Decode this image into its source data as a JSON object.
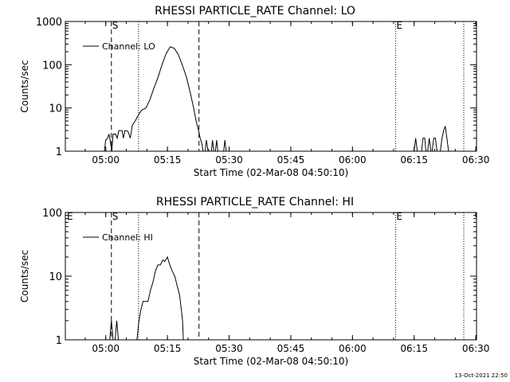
{
  "footer": {
    "timestamp": "13-Oct-2021 22:50"
  },
  "chart_data": [
    {
      "type": "line",
      "title": "RHESSI PARTICLE_RATE Channel: LO",
      "xlabel": "Start Time (02-Mar-08 04:50:10)",
      "ylabel": "Counts/sec",
      "x_unit": "minutes after 04:50:10",
      "xlim": [
        0,
        100
      ],
      "ylim": [
        1,
        1000
      ],
      "yscale": "log",
      "xticks": [
        {
          "value": 9.83,
          "label": "05:00"
        },
        {
          "value": 24.83,
          "label": "05:15"
        },
        {
          "value": 39.83,
          "label": "05:30"
        },
        {
          "value": 54.83,
          "label": "05:45"
        },
        {
          "value": 69.83,
          "label": "06:00"
        },
        {
          "value": 84.83,
          "label": "06:15"
        },
        {
          "value": 99.83,
          "label": "06:30"
        }
      ],
      "yticks": [
        {
          "value": 1,
          "label": "1"
        },
        {
          "value": 10,
          "label": "10"
        },
        {
          "value": 100,
          "label": "100"
        },
        {
          "value": 1000,
          "label": "1000"
        }
      ],
      "legend": {
        "label": "Channel: LO",
        "position": "top-left"
      },
      "markers": [
        {
          "label": "S",
          "x": 11.2,
          "style": "dashed"
        },
        {
          "label": "",
          "x": 17.8,
          "style": "dotted"
        },
        {
          "label": "",
          "x": 32.5,
          "style": "dashed"
        },
        {
          "label": "E",
          "x": 80.3,
          "style": "dotted"
        },
        {
          "label": "",
          "x": 96.9,
          "style": "dotted"
        }
      ],
      "series": [
        {
          "segments": [
            [
              [
                9.5,
                1
              ],
              [
                9.8,
                1.8
              ],
              [
                10.3,
                2
              ],
              [
                10.6,
                2.5
              ],
              [
                10.9,
                1.8
              ],
              [
                11.3,
                1
              ],
              [
                11.6,
                2.5
              ],
              [
                12.2,
                2.5
              ],
              [
                12.6,
                2
              ],
              [
                13.0,
                3
              ],
              [
                13.8,
                3
              ],
              [
                14.1,
                2
              ],
              [
                14.5,
                3
              ],
              [
                14.9,
                3
              ],
              [
                15.3,
                2.8
              ],
              [
                15.8,
                2
              ],
              [
                16.3,
                4
              ],
              [
                17.0,
                5
              ],
              [
                17.8,
                7
              ],
              [
                18.6,
                9
              ],
              [
                19.6,
                10
              ],
              [
                20.5,
                15
              ],
              [
                21.5,
                28
              ],
              [
                22.5,
                50
              ],
              [
                23.5,
                100
              ],
              [
                24.5,
                180
              ],
              [
                25.5,
                260
              ],
              [
                26.5,
                240
              ],
              [
                27.5,
                170
              ],
              [
                28.5,
                95
              ],
              [
                29.5,
                50
              ],
              [
                30.5,
                20
              ],
              [
                31.2,
                10
              ],
              [
                31.8,
                5
              ],
              [
                32.4,
                3
              ],
              [
                32.8,
                2
              ],
              [
                33.2,
                1.5
              ],
              [
                33.5,
                1
              ]
            ],
            [
              [
                34.0,
                1
              ],
              [
                34.3,
                1.8
              ],
              [
                34.7,
                1
              ]
            ],
            [
              [
                35.5,
                1
              ],
              [
                35.8,
                1.8
              ],
              [
                36.1,
                1
              ]
            ],
            [
              [
                36.5,
                1
              ],
              [
                36.8,
                1.8
              ],
              [
                37.1,
                1
              ]
            ],
            [
              [
                38.5,
                1
              ],
              [
                38.8,
                1.8
              ],
              [
                39.1,
                1
              ]
            ],
            [
              [
                84.8,
                1
              ],
              [
                85.2,
                2
              ],
              [
                85.6,
                1
              ]
            ],
            [
              [
                86.6,
                1
              ],
              [
                87.0,
                2
              ],
              [
                87.4,
                2
              ],
              [
                87.7,
                1
              ]
            ],
            [
              [
                88.1,
                1
              ],
              [
                88.5,
                2
              ],
              [
                88.9,
                1
              ]
            ],
            [
              [
                89.2,
                1
              ],
              [
                89.6,
                2
              ],
              [
                90.0,
                2
              ],
              [
                90.4,
                1
              ]
            ],
            [
              [
                91.2,
                1
              ],
              [
                91.6,
                2
              ],
              [
                92.0,
                3
              ],
              [
                92.4,
                3.8
              ],
              [
                92.8,
                2
              ],
              [
                93.2,
                1
              ]
            ]
          ]
        }
      ]
    },
    {
      "type": "line",
      "title": "RHESSI PARTICLE_RATE Channel: HI",
      "xlabel": "Start Time (02-Mar-08 04:50:10)",
      "ylabel": "Counts/sec",
      "x_unit": "minutes after 04:50:10",
      "xlim": [
        0,
        100
      ],
      "ylim": [
        1,
        100
      ],
      "yscale": "log",
      "xticks": [
        {
          "value": 9.83,
          "label": "05:00"
        },
        {
          "value": 24.83,
          "label": "05:15"
        },
        {
          "value": 39.83,
          "label": "05:30"
        },
        {
          "value": 54.83,
          "label": "05:45"
        },
        {
          "value": 69.83,
          "label": "06:00"
        },
        {
          "value": 84.83,
          "label": "06:15"
        },
        {
          "value": 99.83,
          "label": "06:30"
        }
      ],
      "yticks": [
        {
          "value": 1,
          "label": "1"
        },
        {
          "value": 10,
          "label": "10"
        },
        {
          "value": 100,
          "label": "100"
        }
      ],
      "legend": {
        "label": "Channel: HI",
        "position": "top-left"
      },
      "markers": [
        {
          "label": "E",
          "x": 0.2,
          "style": "none"
        },
        {
          "label": "S",
          "x": 11.2,
          "style": "dashed"
        },
        {
          "label": "",
          "x": 17.8,
          "style": "dotted"
        },
        {
          "label": "",
          "x": 32.5,
          "style": "dashed"
        },
        {
          "label": "E",
          "x": 80.3,
          "style": "dotted"
        },
        {
          "label": "",
          "x": 96.9,
          "style": "dotted"
        }
      ],
      "series": [
        {
          "segments": [
            [
              [
                10.8,
                1
              ],
              [
                11.2,
                2
              ],
              [
                11.6,
                1
              ],
              [
                11.9,
                1
              ]
            ],
            [
              [
                12.1,
                1
              ],
              [
                12.5,
                2
              ],
              [
                12.9,
                1
              ]
            ],
            [
              [
                17.4,
                1
              ],
              [
                17.9,
                2
              ],
              [
                18.4,
                3
              ],
              [
                18.9,
                4
              ],
              [
                19.5,
                4
              ],
              [
                20.1,
                4
              ],
              [
                20.7,
                6
              ],
              [
                21.3,
                8
              ],
              [
                21.9,
                12
              ],
              [
                22.5,
                15
              ],
              [
                23.1,
                15
              ],
              [
                23.7,
                18
              ],
              [
                24.2,
                17
              ],
              [
                24.8,
                20
              ],
              [
                25.4,
                15
              ],
              [
                26.0,
                12
              ],
              [
                26.6,
                10
              ],
              [
                27.2,
                7
              ],
              [
                27.8,
                5
              ],
              [
                28.2,
                3
              ],
              [
                28.5,
                2
              ],
              [
                28.7,
                1
              ]
            ]
          ]
        }
      ]
    }
  ]
}
